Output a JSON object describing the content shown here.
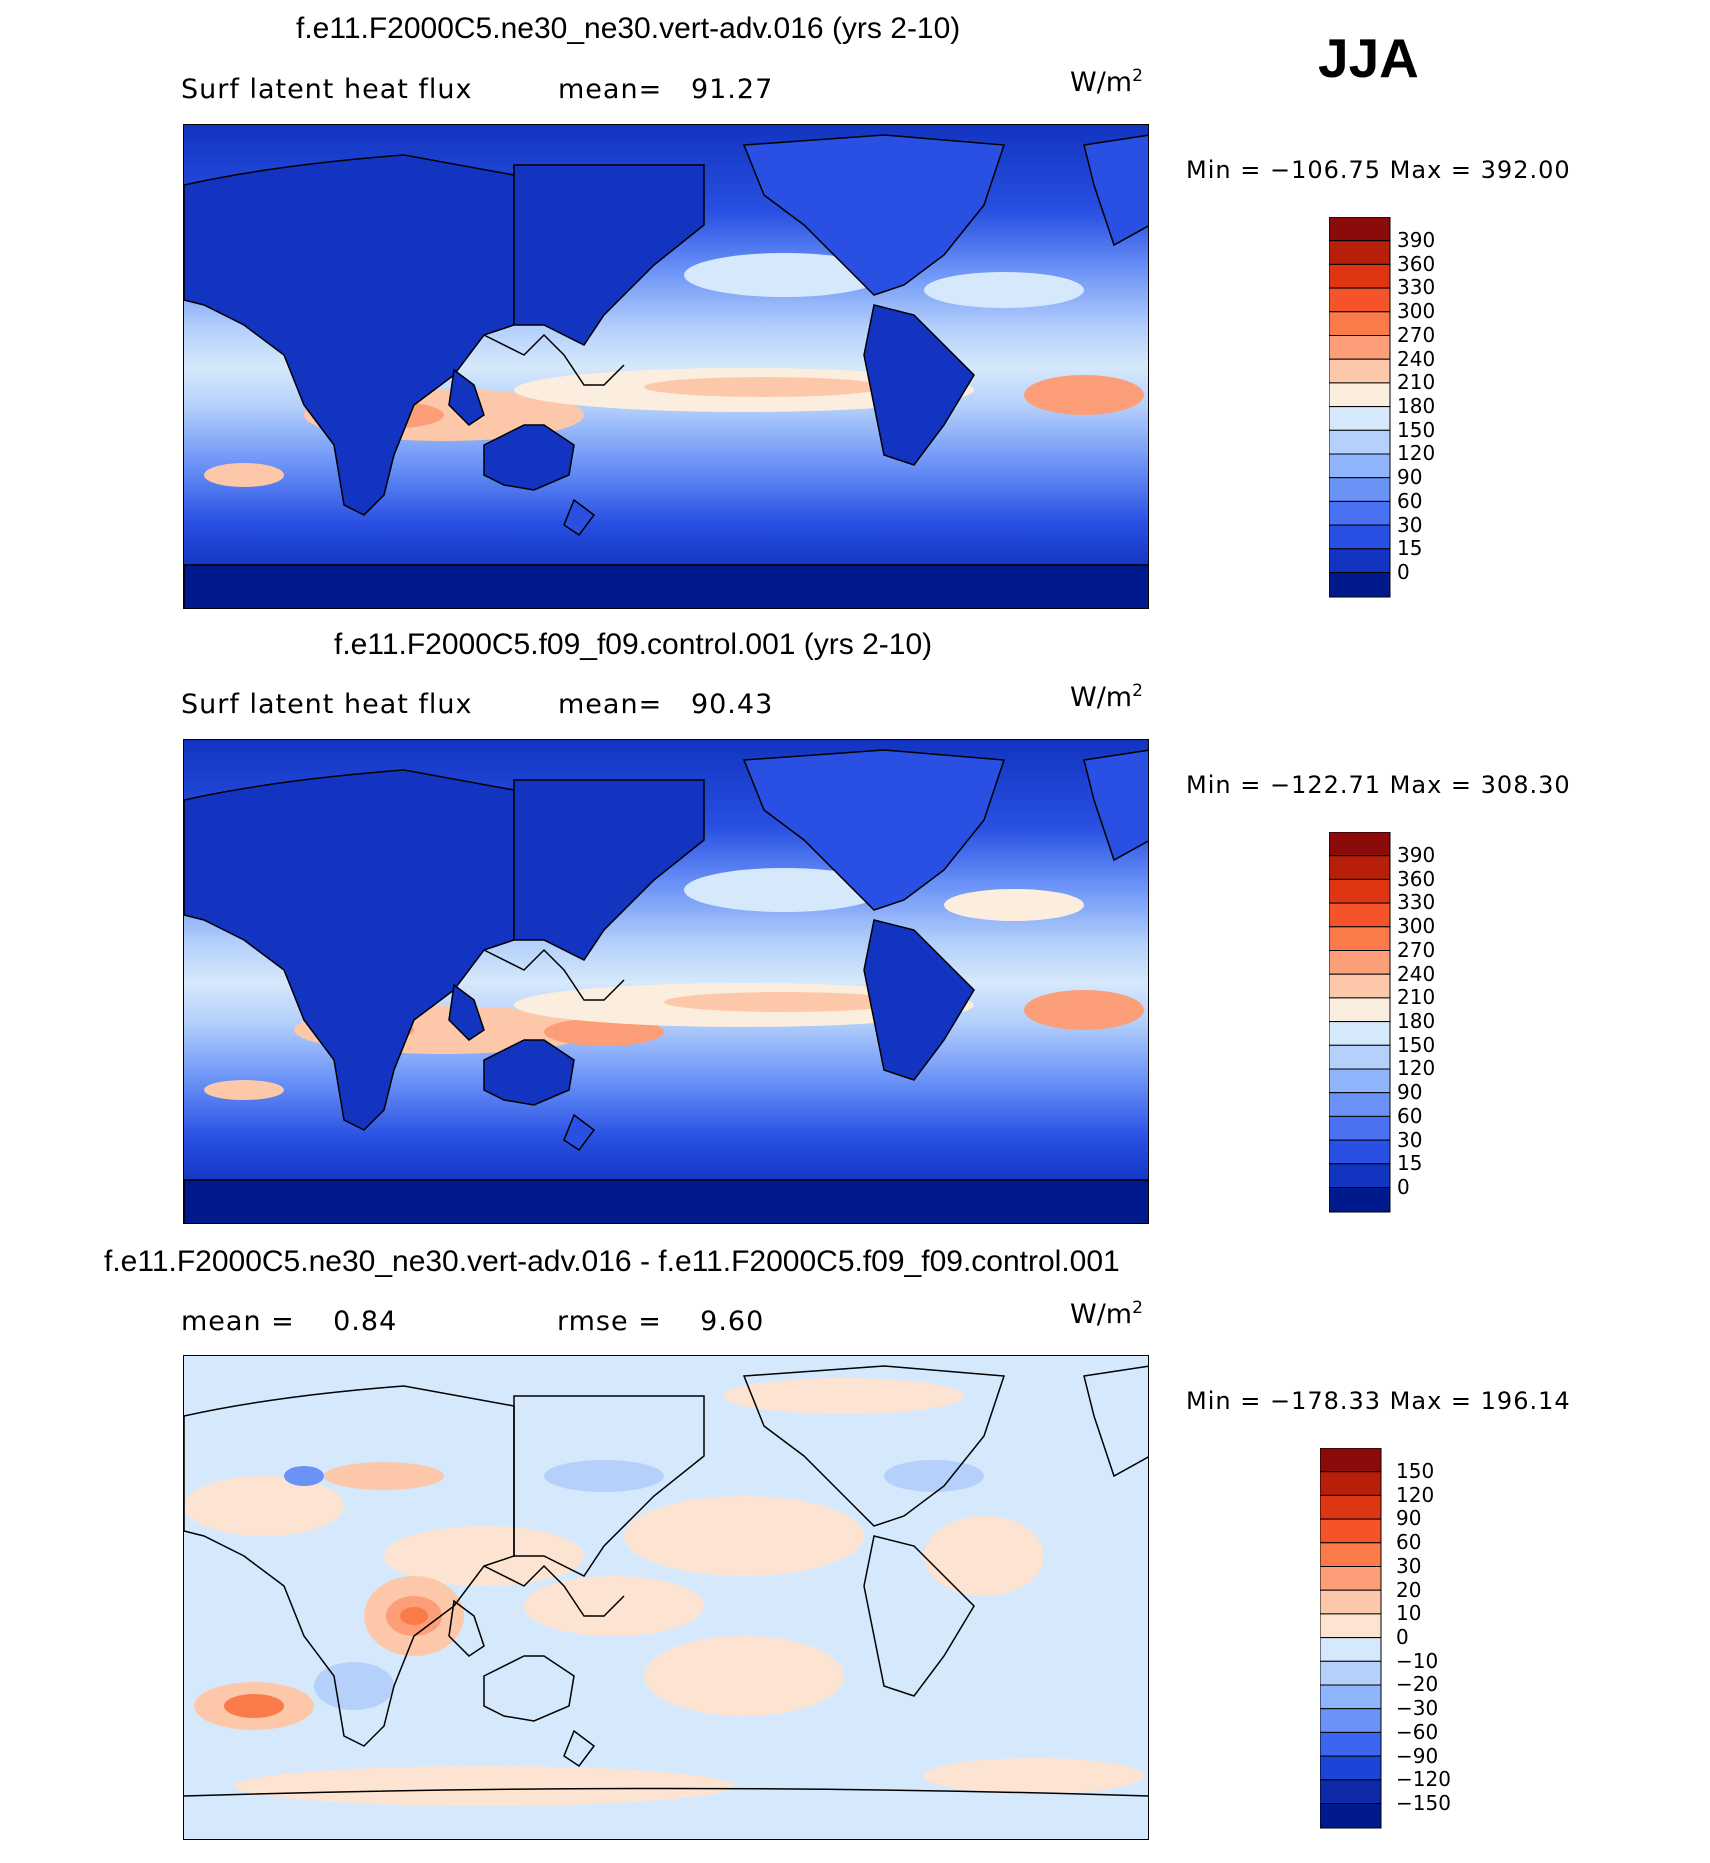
{
  "season": "JJA",
  "panels": [
    {
      "id": "model",
      "title": "f.e11.F2000C5.ne30_ne30.vert-adv.016 (yrs 2-10)",
      "left_label": "Surf latent heat flux",
      "stat_label": "mean=",
      "stat_value": "91.27",
      "units": "W/m",
      "units_exp": "2",
      "min_max": "Min = −106.75 Max = 392.00"
    },
    {
      "id": "control",
      "title": "f.e11.F2000C5.f09_f09.control.001 (yrs 2-10)",
      "left_label": "Surf latent heat flux",
      "stat_label": "mean=",
      "stat_value": "90.43",
      "units": "W/m",
      "units_exp": "2",
      "min_max": "Min = −122.71 Max = 308.30"
    },
    {
      "id": "diff",
      "title": "f.e11.F2000C5.ne30_ne30.vert-adv.016 - f.e11.F2000C5.f09_f09.control.001",
      "left_label": "mean =",
      "left_value": "0.84",
      "stat_label": "rmse =",
      "stat_value": "9.60",
      "units": "W/m",
      "units_exp": "2",
      "min_max": "Min = −178.33 Max = 196.14"
    }
  ],
  "chart_data": [
    {
      "type": "heatmap",
      "title": "f.e11.F2000C5.ne30_ne30.vert-adv.016 (yrs 2-10)",
      "variable": "Surf latent heat flux",
      "units": "W/m2",
      "mean": 91.27,
      "min": -106.75,
      "max": 392.0,
      "colorbar": {
        "levels": [
          "390",
          "360",
          "330",
          "300",
          "270",
          "240",
          "210",
          "180",
          "150",
          "120",
          "90",
          "60",
          "30",
          "15",
          "0"
        ],
        "colors": [
          "#8b0a0a",
          "#b81f0a",
          "#de3512",
          "#f5542a",
          "#fb7a4a",
          "#fc9e78",
          "#fdc8aa",
          "#fbeede",
          "#d6e8fb",
          "#b4d0fb",
          "#8eb4fb",
          "#6b93f7",
          "#4a71f2",
          "#2950e2",
          "#1234c0",
          "#001a8c"
        ]
      }
    },
    {
      "type": "heatmap",
      "title": "f.e11.F2000C5.f09_f09.control.001 (yrs 2-10)",
      "variable": "Surf latent heat flux",
      "units": "W/m2",
      "mean": 90.43,
      "min": -122.71,
      "max": 308.3,
      "colorbar": {
        "levels": [
          "390",
          "360",
          "330",
          "300",
          "270",
          "240",
          "210",
          "180",
          "150",
          "120",
          "90",
          "60",
          "30",
          "15",
          "0"
        ],
        "colors": [
          "#8b0a0a",
          "#b81f0a",
          "#de3512",
          "#f5542a",
          "#fb7a4a",
          "#fc9e78",
          "#fdc8aa",
          "#fbeede",
          "#d6e8fb",
          "#b4d0fb",
          "#8eb4fb",
          "#6b93f7",
          "#4a71f2",
          "#2950e2",
          "#1234c0",
          "#001a8c"
        ]
      }
    },
    {
      "type": "heatmap",
      "title": "f.e11.F2000C5.ne30_ne30.vert-adv.016 - f.e11.F2000C5.f09_f09.control.001",
      "units": "W/m2",
      "mean": 0.84,
      "rmse": 9.6,
      "min": -178.33,
      "max": 196.14,
      "colorbar": {
        "levels": [
          "150",
          "120",
          "90",
          "60",
          "30",
          "20",
          "10",
          "0",
          "−10",
          "−20",
          "−30",
          "−60",
          "−90",
          "−120",
          "−150"
        ],
        "colors": [
          "#8b0a0a",
          "#b81f0a",
          "#de3512",
          "#f5542a",
          "#fb7a4a",
          "#fc9e78",
          "#fdc8aa",
          "#fde4d2",
          "#d6e8fb",
          "#b4d0fb",
          "#8eb4fb",
          "#6b93f7",
          "#3c66f0",
          "#1c44d6",
          "#0f2aa8",
          "#001a8c"
        ]
      }
    }
  ]
}
